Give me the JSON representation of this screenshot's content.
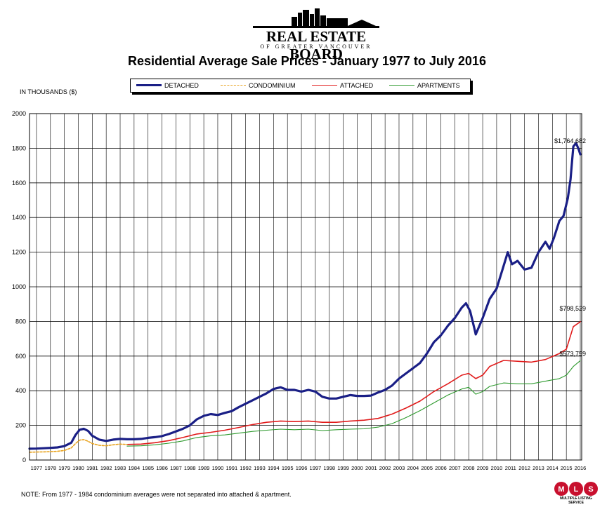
{
  "header": {
    "logo_name": "REAL ESTATE BOARD",
    "logo_sub": "OF GREATER VANCOUVER"
  },
  "badge": {
    "logo_sub": "MULTIPLE LISTING SERVICE"
  },
  "footer": {
    "note": "NOTE:  From 1977 - 1984 condominium averages were not separated into attached & apartment."
  },
  "chart_data": {
    "type": "line",
    "title": "Residential Average Sale Prices  -  January 1977 to July 2016",
    "ylabel": "IN THOUSANDS ($)",
    "xlabel": "",
    "ylim": [
      0,
      2000
    ],
    "xlim": [
      1977,
      2016.6
    ],
    "yticks": [
      0,
      200,
      400,
      600,
      800,
      1000,
      1200,
      1400,
      1600,
      1800,
      2000
    ],
    "xticks": [
      "1977",
      "1978",
      "1979",
      "1980",
      "1981",
      "1982",
      "1983",
      "1984",
      "1985",
      "1986",
      "1987",
      "1988",
      "1989",
      "1990",
      "1991",
      "1992",
      "1993",
      "1994",
      "1995",
      "1996",
      "1997",
      "1998",
      "1999",
      "2000",
      "2001",
      "2002",
      "2003",
      "2004",
      "2005",
      "2006",
      "2007",
      "2008",
      "2009",
      "2010",
      "2011",
      "2012",
      "2013",
      "2014",
      "2015",
      "2016"
    ],
    "grid": true,
    "legend_position": "top",
    "series": [
      {
        "name": "DETACHED",
        "color": "#1a1f86",
        "style": "solid-thick",
        "points": [
          [
            1977,
            65
          ],
          [
            1977.5,
            66
          ],
          [
            1978,
            68
          ],
          [
            1978.5,
            70
          ],
          [
            1979,
            73
          ],
          [
            1979.5,
            80
          ],
          [
            1980,
            100
          ],
          [
            1980.3,
            145
          ],
          [
            1980.6,
            175
          ],
          [
            1980.9,
            180
          ],
          [
            1981.2,
            168
          ],
          [
            1981.5,
            140
          ],
          [
            1982,
            118
          ],
          [
            1982.5,
            110
          ],
          [
            1983,
            118
          ],
          [
            1983.5,
            122
          ],
          [
            1984,
            120
          ],
          [
            1984.5,
            120
          ],
          [
            1985,
            122
          ],
          [
            1985.5,
            128
          ],
          [
            1986,
            132
          ],
          [
            1986.5,
            138
          ],
          [
            1987,
            150
          ],
          [
            1987.5,
            165
          ],
          [
            1988,
            180
          ],
          [
            1988.5,
            200
          ],
          [
            1989,
            235
          ],
          [
            1989.5,
            255
          ],
          [
            1990,
            265
          ],
          [
            1990.5,
            260
          ],
          [
            1991,
            272
          ],
          [
            1991.5,
            282
          ],
          [
            1992,
            305
          ],
          [
            1992.5,
            325
          ],
          [
            1993,
            345
          ],
          [
            1993.5,
            365
          ],
          [
            1994,
            385
          ],
          [
            1994.5,
            410
          ],
          [
            1995,
            420
          ],
          [
            1995.5,
            405
          ],
          [
            1996,
            405
          ],
          [
            1996.5,
            395
          ],
          [
            1997,
            405
          ],
          [
            1997.5,
            395
          ],
          [
            1998,
            365
          ],
          [
            1998.5,
            355
          ],
          [
            1999,
            355
          ],
          [
            1999.5,
            365
          ],
          [
            2000,
            375
          ],
          [
            2000.5,
            370
          ],
          [
            2001,
            370
          ],
          [
            2001.5,
            372
          ],
          [
            2002,
            390
          ],
          [
            2002.5,
            405
          ],
          [
            2003,
            430
          ],
          [
            2003.5,
            470
          ],
          [
            2004,
            500
          ],
          [
            2004.5,
            530
          ],
          [
            2005,
            560
          ],
          [
            2005.5,
            615
          ],
          [
            2006,
            680
          ],
          [
            2006.5,
            720
          ],
          [
            2007,
            775
          ],
          [
            2007.5,
            820
          ],
          [
            2008,
            880
          ],
          [
            2008.3,
            905
          ],
          [
            2008.6,
            860
          ],
          [
            2008.9,
            760
          ],
          [
            2009,
            725
          ],
          [
            2009.5,
            820
          ],
          [
            2010,
            930
          ],
          [
            2010.5,
            990
          ],
          [
            2011,
            1120
          ],
          [
            2011.3,
            1200
          ],
          [
            2011.6,
            1130
          ],
          [
            2012,
            1150
          ],
          [
            2012.5,
            1100
          ],
          [
            2013,
            1110
          ],
          [
            2013.5,
            1200
          ],
          [
            2014,
            1260
          ],
          [
            2014.3,
            1220
          ],
          [
            2014.6,
            1280
          ],
          [
            2015,
            1380
          ],
          [
            2015.3,
            1410
          ],
          [
            2015.6,
            1510
          ],
          [
            2015.8,
            1620
          ],
          [
            2016,
            1810
          ],
          [
            2016.2,
            1830
          ],
          [
            2016.4,
            1790
          ],
          [
            2016.5,
            1764.682
          ]
        ]
      },
      {
        "name": "CONDOMINIUM",
        "color": "#e8a21c",
        "style": "dashed",
        "points": [
          [
            1977,
            45
          ],
          [
            1977.5,
            46
          ],
          [
            1978,
            47
          ],
          [
            1978.5,
            48
          ],
          [
            1979,
            50
          ],
          [
            1979.5,
            55
          ],
          [
            1980,
            70
          ],
          [
            1980.3,
            95
          ],
          [
            1980.6,
            115
          ],
          [
            1980.9,
            118
          ],
          [
            1981.2,
            108
          ],
          [
            1981.5,
            95
          ],
          [
            1982,
            85
          ],
          [
            1982.5,
            82
          ],
          [
            1983,
            88
          ],
          [
            1983.5,
            92
          ],
          [
            1984,
            90
          ]
        ]
      },
      {
        "name": "ATTACHED",
        "color": "#e11b1b",
        "style": "solid",
        "points": [
          [
            1984,
            90
          ],
          [
            1985,
            92
          ],
          [
            1986,
            100
          ],
          [
            1987,
            112
          ],
          [
            1988,
            130
          ],
          [
            1989,
            150
          ],
          [
            1990,
            160
          ],
          [
            1991,
            172
          ],
          [
            1992,
            188
          ],
          [
            1993,
            205
          ],
          [
            1994,
            218
          ],
          [
            1995,
            225
          ],
          [
            1996,
            222
          ],
          [
            1997,
            225
          ],
          [
            1998,
            218
          ],
          [
            1999,
            218
          ],
          [
            2000,
            225
          ],
          [
            2001,
            230
          ],
          [
            2002,
            240
          ],
          [
            2003,
            265
          ],
          [
            2004,
            300
          ],
          [
            2005,
            340
          ],
          [
            2006,
            395
          ],
          [
            2007,
            440
          ],
          [
            2008,
            490
          ],
          [
            2008.5,
            500
          ],
          [
            2009,
            470
          ],
          [
            2009.5,
            490
          ],
          [
            2010,
            540
          ],
          [
            2011,
            575
          ],
          [
            2012,
            570
          ],
          [
            2013,
            565
          ],
          [
            2014,
            580
          ],
          [
            2015,
            615
          ],
          [
            2015.5,
            640
          ],
          [
            2016,
            770
          ],
          [
            2016.5,
            798.529
          ]
        ]
      },
      {
        "name": "APARTMENTS",
        "color": "#2e9a2e",
        "style": "solid-thin",
        "points": [
          [
            1984,
            80
          ],
          [
            1985,
            82
          ],
          [
            1986,
            88
          ],
          [
            1987,
            97
          ],
          [
            1988,
            110
          ],
          [
            1989,
            130
          ],
          [
            1990,
            140
          ],
          [
            1991,
            145
          ],
          [
            1992,
            155
          ],
          [
            1993,
            165
          ],
          [
            1994,
            172
          ],
          [
            1995,
            178
          ],
          [
            1996,
            175
          ],
          [
            1997,
            178
          ],
          [
            1998,
            170
          ],
          [
            1999,
            175
          ],
          [
            2000,
            178
          ],
          [
            2001,
            180
          ],
          [
            2002,
            190
          ],
          [
            2003,
            210
          ],
          [
            2004,
            245
          ],
          [
            2005,
            285
          ],
          [
            2006,
            330
          ],
          [
            2007,
            375
          ],
          [
            2008,
            410
          ],
          [
            2008.5,
            420
          ],
          [
            2009,
            380
          ],
          [
            2009.5,
            395
          ],
          [
            2010,
            425
          ],
          [
            2011,
            445
          ],
          [
            2012,
            440
          ],
          [
            2013,
            440
          ],
          [
            2014,
            455
          ],
          [
            2015,
            470
          ],
          [
            2015.5,
            490
          ],
          [
            2016,
            540
          ],
          [
            2016.5,
            573.759
          ]
        ]
      }
    ],
    "annotations": [
      {
        "text": "$1,764,682",
        "x": 2016.5,
        "y": 1764.682
      },
      {
        "text": "$798,529",
        "x": 2016.5,
        "y": 798.529
      },
      {
        "text": "$573,759",
        "x": 2016.5,
        "y": 573.759
      }
    ]
  }
}
